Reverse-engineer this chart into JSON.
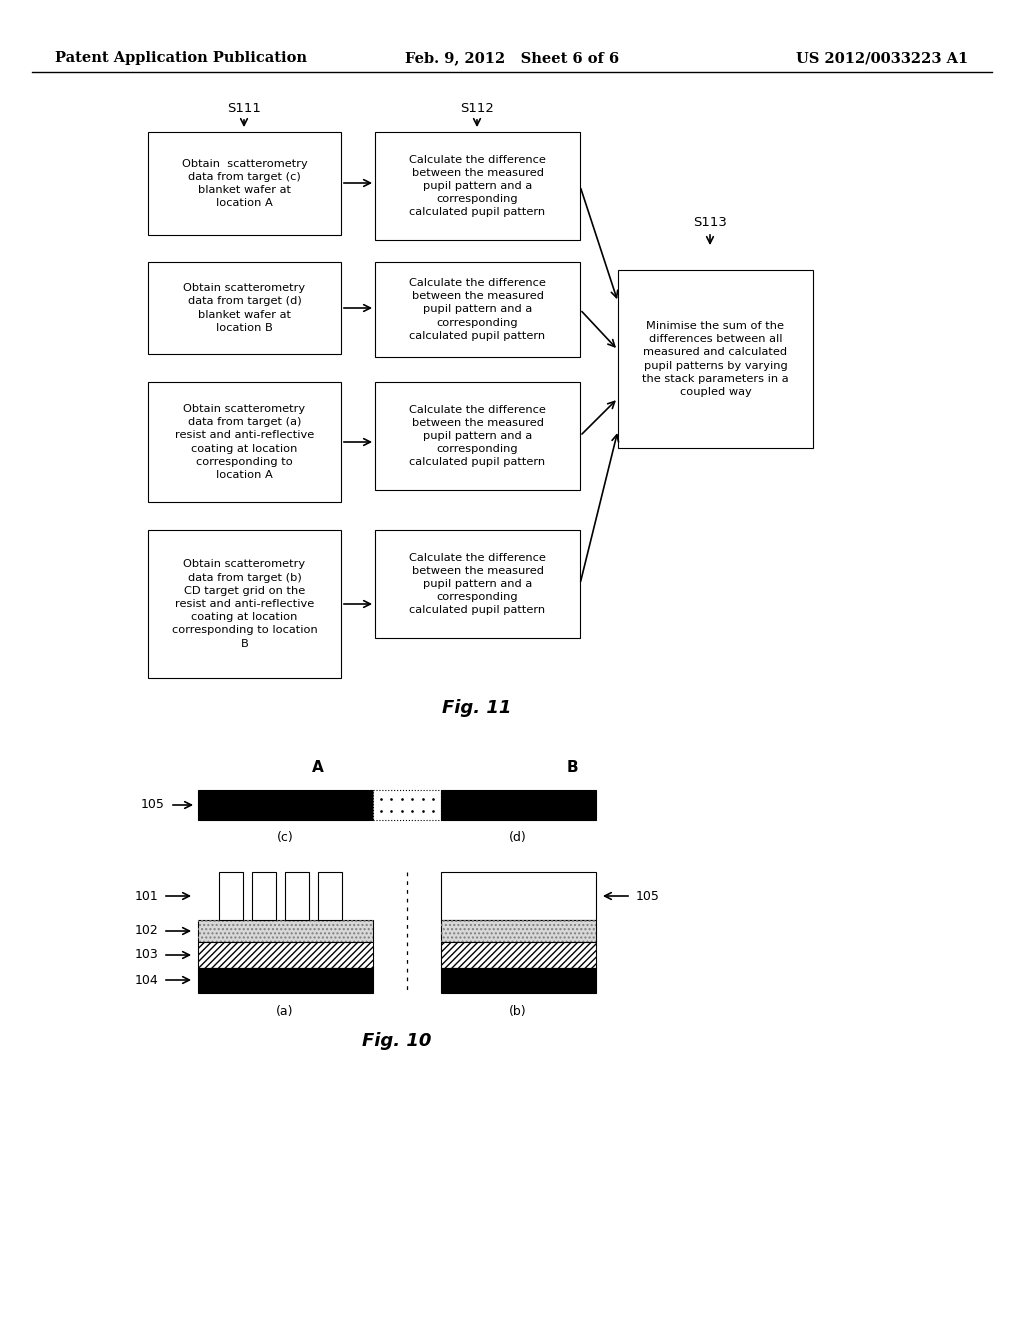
{
  "title_left": "Patent Application Publication",
  "title_mid": "Feb. 9, 2012   Sheet 6 of 6",
  "title_right": "US 2012/0033223 A1",
  "fig11_label": "Fig. 11",
  "fig10_label": "Fig. 10",
  "s111_label": "S111",
  "s112_label": "S112",
  "s113_label": "S113",
  "box1_text": "Obtain  scatterometry\ndata from target (c)\nblanket wafer at\nlocation A",
  "box2_text": "Obtain scatterometry\ndata from target (d)\nblanket wafer at\nlocation B",
  "box3_text": "Obtain scatterometry\ndata from target (a)\nresist and anti-reflective\ncoating at location\ncorresponding to\nlocation A",
  "box4_text": "Obtain scatterometry\ndata from target (b)\nCD target grid on the\nresist and anti-reflective\ncoating at location\ncorresponding to location\nB",
  "calc_box_text": "Calculate the difference\nbetween the measured\npupil pattern and a\ncorresponding\ncalculated pupil pattern",
  "minimise_text": "Minimise the sum of the\ndifferences between all\nmeasured and calculated\npupil patterns by varying\nthe stack parameters in a\ncoupled way",
  "label_A": "A",
  "label_B": "B",
  "label_c": "(c)",
  "label_d": "(d)",
  "label_a": "(a)",
  "label_b": "(b)",
  "label_101": "101",
  "label_102": "102",
  "label_103": "103",
  "label_104": "104",
  "label_105_top": "105",
  "label_105_right": "105"
}
